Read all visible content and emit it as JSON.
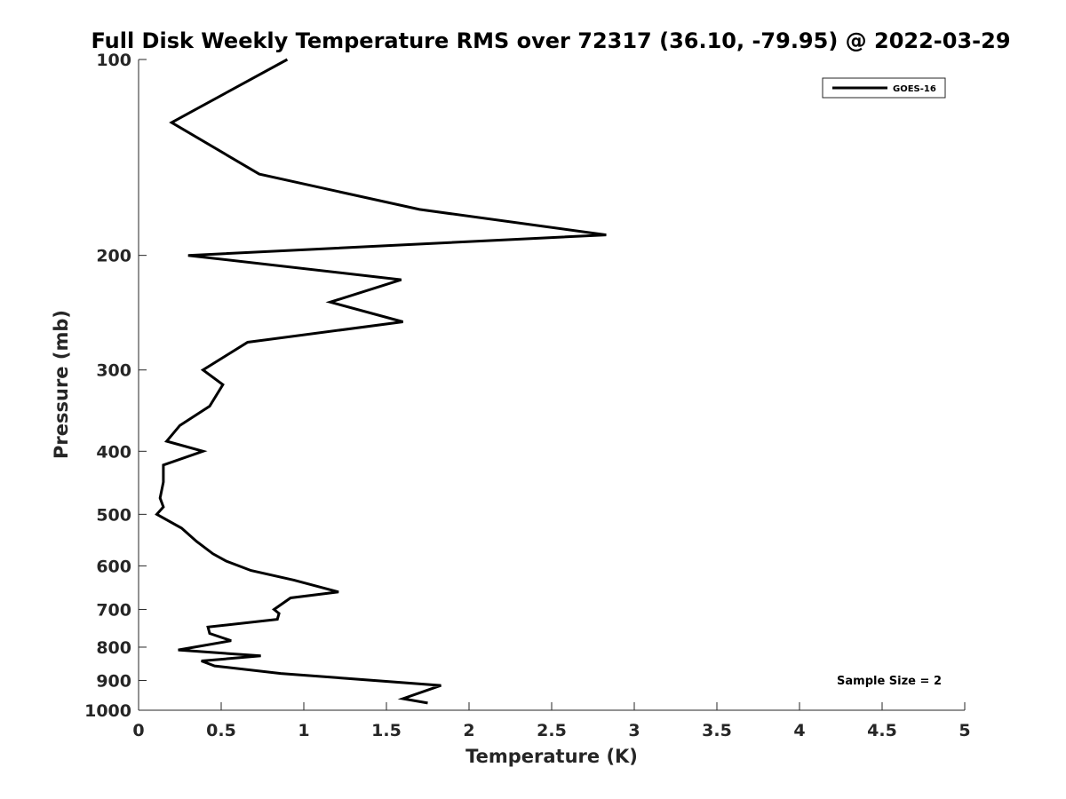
{
  "chart_data": {
    "type": "line",
    "title": "Full Disk Weekly Temperature RMS over 72317 (36.10, -79.95) @ 2022-03-29",
    "xlabel": "Temperature (K)",
    "ylabel": "Pressure (mb)",
    "xlim": [
      0,
      5
    ],
    "ylim": [
      100,
      1000
    ],
    "y_scale": "log",
    "y_reversed": true,
    "x_ticks": [
      "0",
      "0.5",
      "1",
      "1.5",
      "2",
      "2.5",
      "3",
      "3.5",
      "4",
      "4.5",
      "5"
    ],
    "x_tick_values": [
      0,
      0.5,
      1,
      1.5,
      2,
      2.5,
      3,
      3.5,
      4,
      4.5,
      5
    ],
    "y_ticks": [
      "100",
      "200",
      "300",
      "400",
      "500",
      "600",
      "700",
      "800",
      "900",
      "1000"
    ],
    "y_tick_values": [
      100,
      200,
      300,
      400,
      500,
      600,
      700,
      800,
      900,
      1000
    ],
    "grid": false,
    "legend_position": "top-right",
    "annotation": "Sample Size = 2",
    "series": [
      {
        "name": "GOES-16",
        "color": "#000000",
        "points": [
          [
            0.9,
            100
          ],
          [
            0.2,
            125
          ],
          [
            0.73,
            150
          ],
          [
            1.7,
            170
          ],
          [
            2.83,
            186
          ],
          [
            0.3,
            200
          ],
          [
            1.59,
            218
          ],
          [
            1.16,
            236
          ],
          [
            1.6,
            253
          ],
          [
            0.66,
            272
          ],
          [
            0.39,
            300
          ],
          [
            0.51,
            316
          ],
          [
            0.43,
            341
          ],
          [
            0.25,
            365
          ],
          [
            0.17,
            386
          ],
          [
            0.39,
            400
          ],
          [
            0.15,
            420
          ],
          [
            0.15,
            446
          ],
          [
            0.13,
            472
          ],
          [
            0.15,
            487
          ],
          [
            0.11,
            500
          ],
          [
            0.26,
            525
          ],
          [
            0.35,
            550
          ],
          [
            0.45,
            575
          ],
          [
            0.53,
            590
          ],
          [
            0.68,
            610
          ],
          [
            0.94,
            631
          ],
          [
            1.21,
            658
          ],
          [
            0.92,
            672
          ],
          [
            0.82,
            700
          ],
          [
            0.85,
            710
          ],
          [
            0.84,
            725
          ],
          [
            0.42,
            745
          ],
          [
            0.43,
            762
          ],
          [
            0.56,
            782
          ],
          [
            0.24,
            808
          ],
          [
            0.74,
            825
          ],
          [
            0.38,
            840
          ],
          [
            0.46,
            855
          ],
          [
            0.86,
            878
          ],
          [
            1.83,
            916
          ],
          [
            1.6,
            960
          ],
          [
            1.75,
            975
          ]
        ]
      }
    ]
  }
}
